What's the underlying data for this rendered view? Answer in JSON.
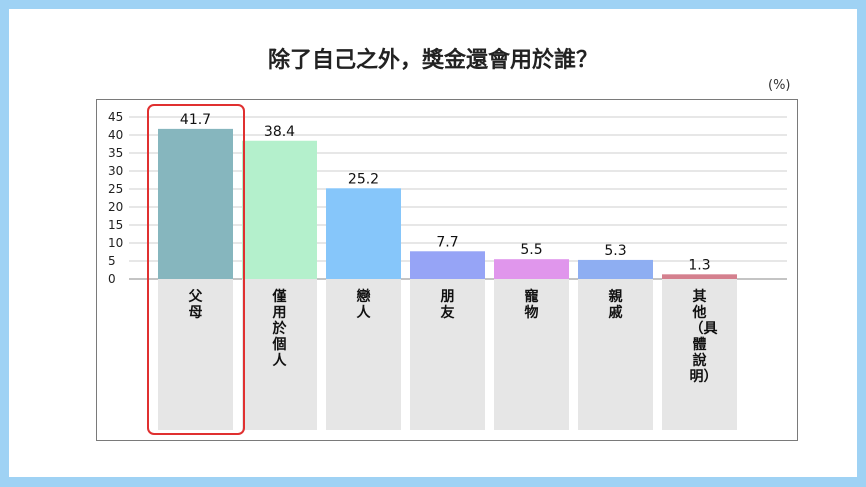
{
  "title": "除了自己之外，獎金還會用於誰？",
  "unit": "(%)",
  "colors": {
    "frame": "#9fd2f4",
    "highlight": "#e03030",
    "label_bg": "#e6e6e6"
  },
  "chart_data": {
    "type": "bar",
    "title": "除了自己之外，獎金還會用於誰？",
    "ylabel": "(%)",
    "ylim": [
      0,
      45
    ],
    "yticks": [
      "45",
      "40",
      "35",
      "30",
      "25",
      "20",
      "15",
      "10",
      "5",
      "0"
    ],
    "grid": true,
    "highlighted_category": "父母",
    "categories": [
      "父母",
      "僅用於個人",
      "戀人",
      "朋友",
      "寵物",
      "親戚",
      "其他（具體說明）"
    ],
    "values": [
      41.7,
      38.4,
      25.2,
      7.7,
      5.5,
      5.3,
      1.3
    ],
    "value_labels": [
      "41.7",
      "38.4",
      "25.2",
      "7.7",
      "5.5",
      "5.3",
      "1.3"
    ],
    "bar_colors": [
      "#86b6be",
      "#b4f0cc",
      "#86c6fa",
      "#96a4f6",
      "#e096ec",
      "#8eaef2",
      "#d4808e"
    ]
  }
}
